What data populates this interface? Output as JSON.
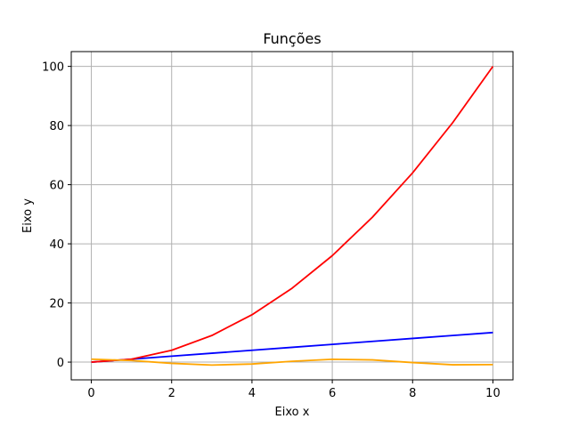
{
  "chart_data": {
    "type": "line",
    "title": "Funções",
    "xlabel": "Eixo x",
    "ylabel": "Eixo y",
    "x": [
      0,
      1,
      2,
      3,
      4,
      5,
      6,
      7,
      8,
      9,
      10
    ],
    "series": [
      {
        "color": "#0000ff",
        "values": [
          0,
          1,
          2,
          3,
          4,
          5,
          6,
          7,
          8,
          9,
          10
        ]
      },
      {
        "color": "#ff0000",
        "values": [
          0,
          1,
          4,
          9,
          16,
          25,
          36,
          49,
          64,
          81,
          100
        ]
      },
      {
        "color": "#ffa500",
        "values": [
          1,
          0.54,
          -0.42,
          -0.99,
          -0.65,
          0.28,
          0.96,
          0.75,
          -0.15,
          -0.91,
          -0.84
        ]
      }
    ],
    "xlim": [
      -0.5,
      10.5
    ],
    "ylim": [
      -6,
      105
    ],
    "xticks": [
      0,
      2,
      4,
      6,
      8,
      10
    ],
    "yticks": [
      0,
      20,
      40,
      60,
      80,
      100
    ],
    "grid": true,
    "legend": "none"
  }
}
